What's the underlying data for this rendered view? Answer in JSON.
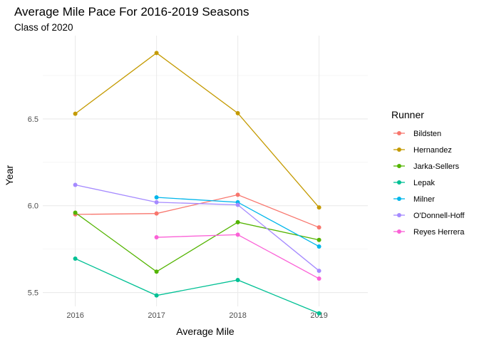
{
  "chart_data": {
    "type": "line",
    "title": "Average Mile Pace For 2016-2019 Seasons",
    "subtitle": "Class of 2020",
    "xlabel": "Average Mile",
    "ylabel": "Year",
    "x": [
      2016,
      2017,
      2018,
      2019
    ],
    "xlim": [
      2015.6,
      2019.6
    ],
    "ylim": [
      5.42,
      6.98
    ],
    "yticks": [
      5.5,
      6.0,
      6.5
    ],
    "grid": true,
    "legend_title": "Runner",
    "legend_position": "right",
    "series": [
      {
        "name": "Bildsten",
        "color": "#F8766D",
        "values": [
          5.95,
          5.955,
          6.063,
          5.875
        ]
      },
      {
        "name": "Hernandez",
        "color": "#C49A00",
        "values": [
          6.53,
          6.88,
          6.533,
          5.99
        ]
      },
      {
        "name": "Jarka-Sellers",
        "color": "#53B400",
        "values": [
          5.96,
          5.62,
          5.905,
          5.803
        ]
      },
      {
        "name": "Lepak",
        "color": "#00C094",
        "values": [
          5.695,
          5.483,
          5.572,
          5.38
        ]
      },
      {
        "name": "Milner",
        "color": "#00B6EB",
        "values": [
          null,
          6.048,
          6.02,
          5.765
        ]
      },
      {
        "name": "O'Donnell-Hoff",
        "color": "#A58AFF",
        "values": [
          6.12,
          6.02,
          6.005,
          5.625
        ]
      },
      {
        "name": "Reyes Herrera",
        "color": "#FB61D7",
        "values": [
          null,
          5.818,
          5.833,
          5.58
        ]
      }
    ]
  }
}
